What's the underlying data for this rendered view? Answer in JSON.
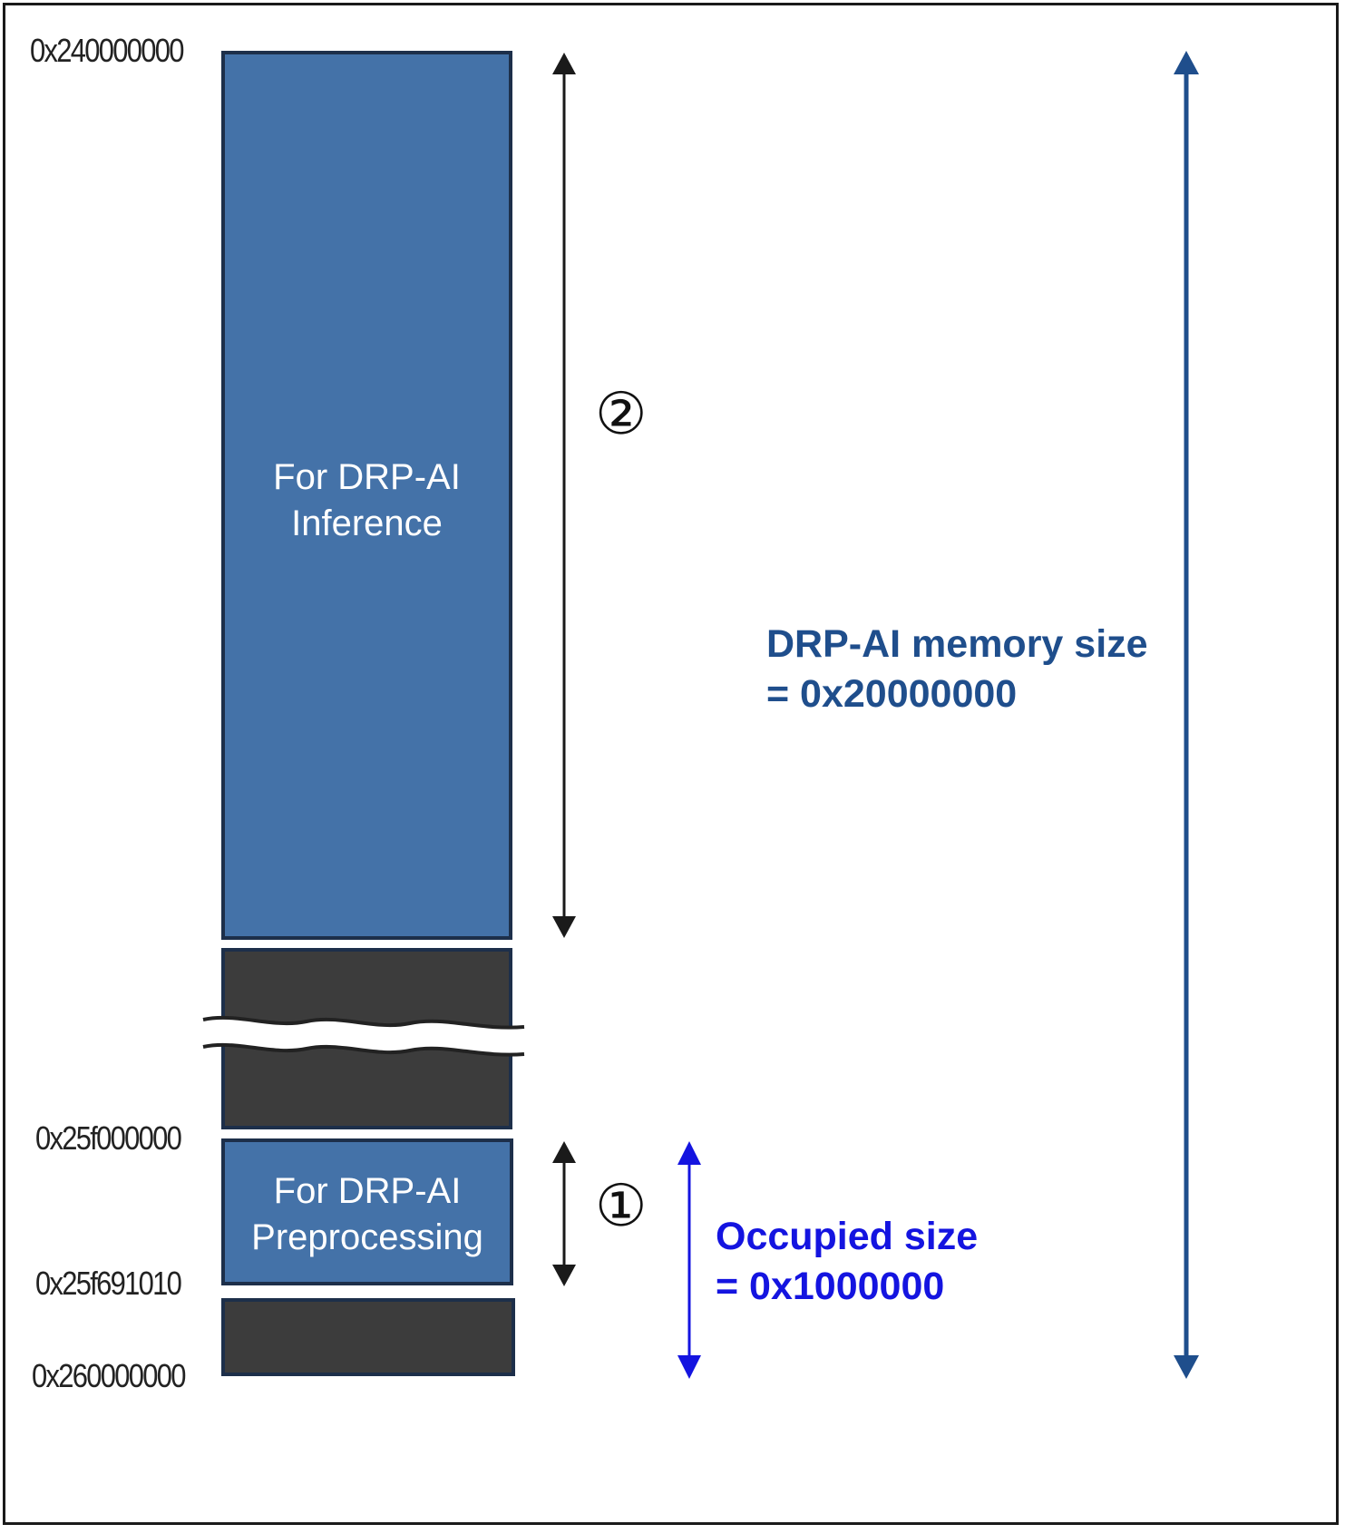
{
  "addresses": {
    "top": "0x240000000",
    "preprocessing_start": "0x25f000000",
    "preprocessing_end": "0x25f691010",
    "bottom": "0x260000000"
  },
  "regions": {
    "inference": {
      "line1": "For DRP-AI",
      "line2": "Inference"
    },
    "preprocessing": {
      "line1": "For DRP-AI",
      "line2": "Preprocessing"
    }
  },
  "markers": {
    "inference": "②",
    "preprocessing": "①"
  },
  "memory_size": {
    "line1": "DRP-AI memory size",
    "line2": "= 0x20000000"
  },
  "occupied_size": {
    "line1": "Occupied size",
    "line2": "= 0x1000000"
  },
  "colors": {
    "block_blue": "#4472a8",
    "block_dark": "#3c3c3c",
    "memory_arrow": "#1f4e8c",
    "occupied_arrow": "#1414e0",
    "span_arrow": "#1a1a1a"
  }
}
